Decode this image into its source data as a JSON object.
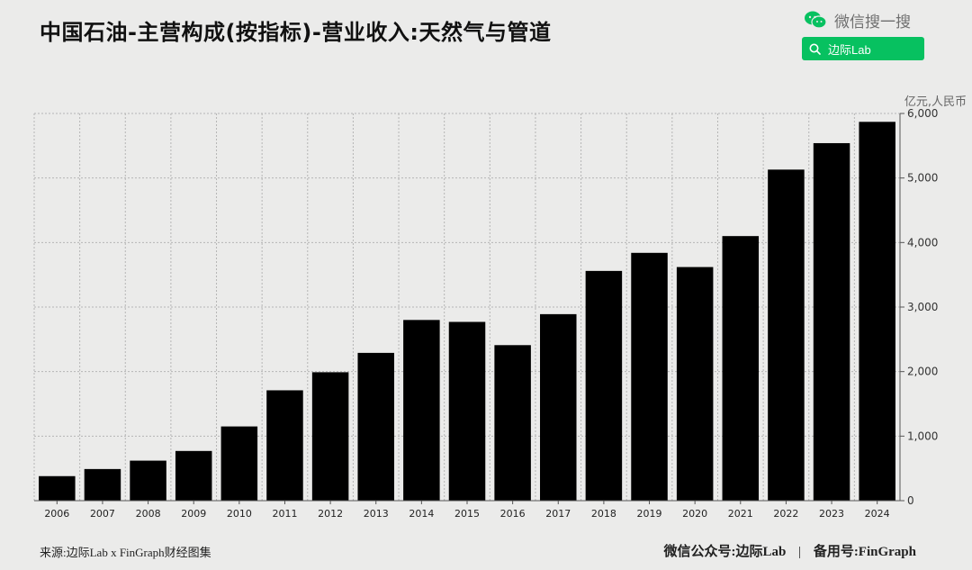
{
  "brand": {
    "name": "微信搜一搜",
    "search_text": "边际Lab",
    "accent_color": "#07c160"
  },
  "footer": {
    "source": "来源:边际Lab x FinGraph财经图集",
    "account_label": "微信公众号:边际Lab",
    "separator": "|",
    "backup_label": "备用号:FinGraph"
  },
  "chart_data": {
    "type": "bar",
    "title": "中国石油-主营构成(按指标)-营业收入:天然气与管道",
    "unit": "亿元,人民币",
    "categories": [
      "2006",
      "2007",
      "2008",
      "2009",
      "2010",
      "2011",
      "2012",
      "2013",
      "2014",
      "2015",
      "2016",
      "2017",
      "2018",
      "2019",
      "2020",
      "2021",
      "2022",
      "2023",
      "2024"
    ],
    "values": [
      380,
      490,
      620,
      770,
      1150,
      1710,
      1990,
      2290,
      2800,
      2770,
      2410,
      2890,
      3560,
      3840,
      3620,
      4100,
      5130,
      5540,
      5870
    ],
    "ylim": [
      0,
      6000
    ],
    "yticks": [
      0,
      1000,
      2000,
      3000,
      4000,
      5000,
      6000
    ],
    "ytick_labels": [
      "0",
      "1,000",
      "2,000",
      "3,000",
      "4,000",
      "5,000",
      "6,000"
    ],
    "axis_position": "right",
    "grid": true,
    "bar_color": "#000000"
  }
}
